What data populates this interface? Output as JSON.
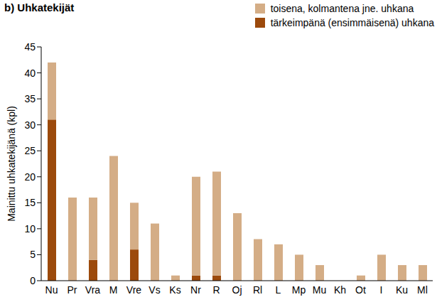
{
  "chart_data": {
    "type": "bar",
    "title": "b) Uhkatekijät",
    "y_label": "Mainittu uhkatekijänä (kpl)",
    "categories": [
      "Nu",
      "Pr",
      "Vra",
      "M",
      "Vre",
      "Vs",
      "Ks",
      "Nr",
      "R",
      "Oj",
      "Rl",
      "L",
      "Mp",
      "Mu",
      "Kh",
      "Ot",
      "I",
      "Ku",
      "Ml"
    ],
    "series": [
      {
        "name": "tärkeimpänä (ensimmäisenä) uhkana",
        "color": "#9c4a0c",
        "values": [
          31,
          0,
          4,
          0,
          6,
          0,
          0,
          1,
          1,
          0,
          0,
          0,
          0,
          0,
          0,
          0,
          0,
          0,
          0
        ]
      },
      {
        "name": "toisena, kolmantena jne. uhkana",
        "color": "#d4ad86",
        "values": [
          11,
          16,
          12,
          24,
          9,
          11,
          1,
          19,
          20,
          13,
          8,
          7,
          5,
          3,
          0,
          1,
          5,
          3,
          3
        ]
      }
    ],
    "ylim": [
      0,
      45
    ],
    "yticks": [
      0,
      5,
      10,
      15,
      20,
      25,
      30,
      35,
      40,
      45
    ],
    "stacked": true,
    "grid": false,
    "legend": "top-right"
  }
}
